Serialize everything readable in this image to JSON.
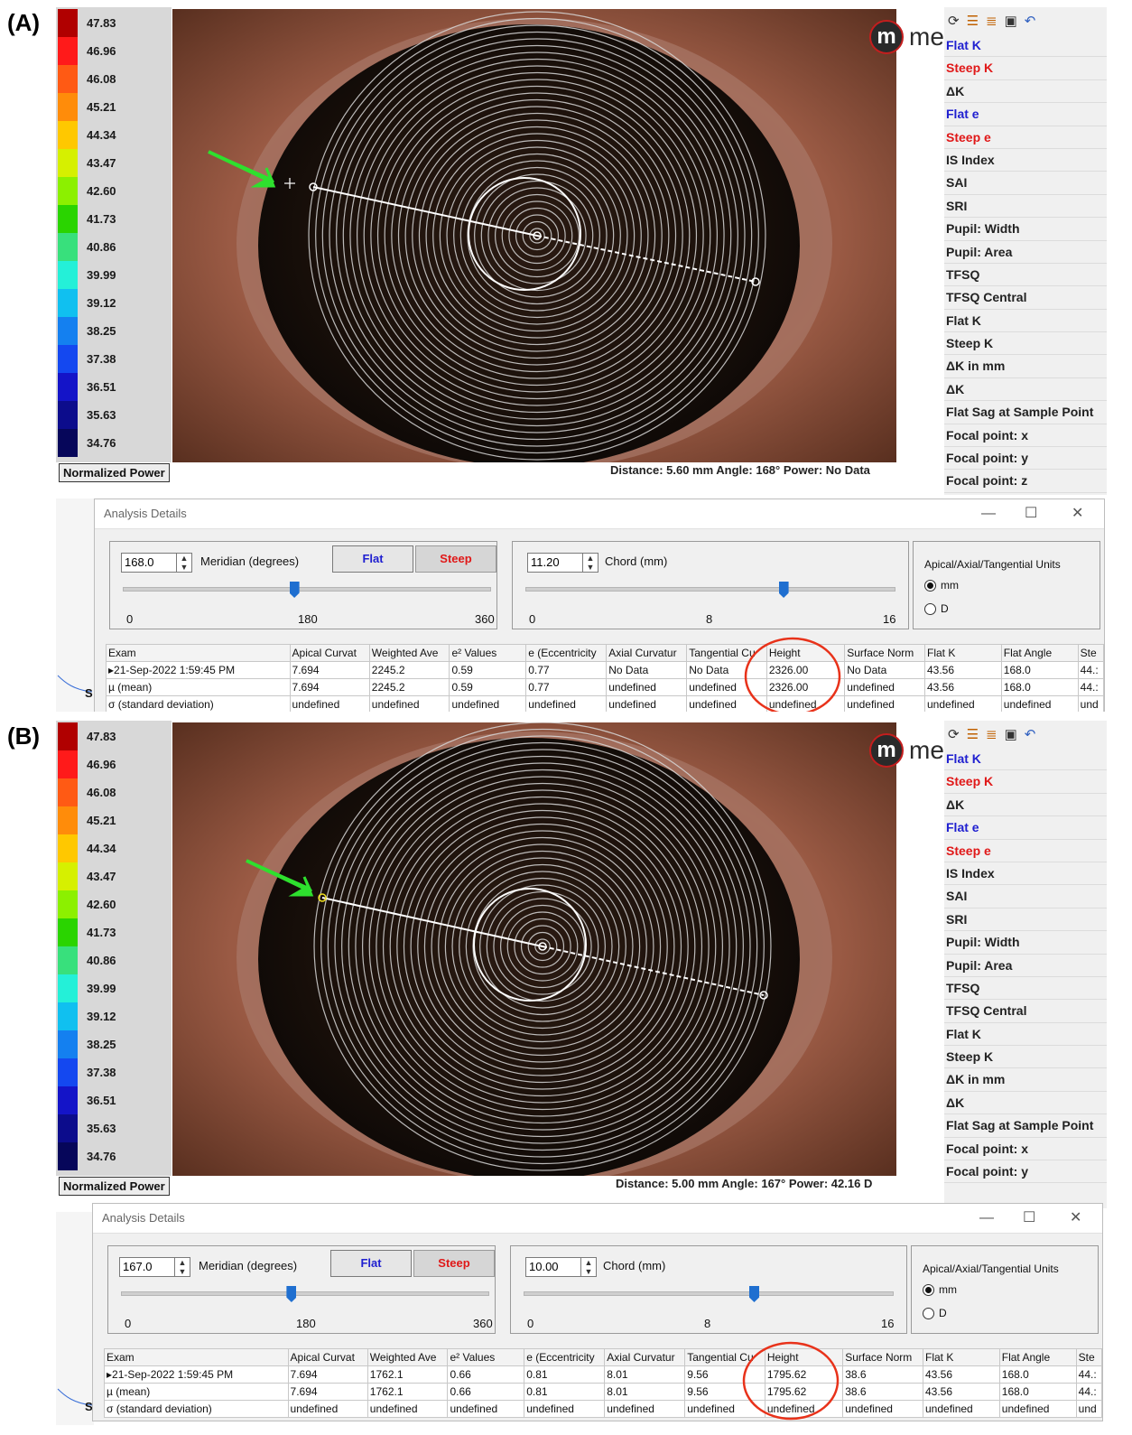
{
  "scale_values": [
    "47.83",
    "46.96",
    "46.08",
    "45.21",
    "44.34",
    "43.47",
    "42.60",
    "41.73",
    "40.86",
    "39.99",
    "39.12",
    "38.25",
    "37.38",
    "36.51",
    "35.63",
    "34.76"
  ],
  "scale_colors": [
    "#b00000",
    "#ff1a1a",
    "#ff5a14",
    "#ff8c0a",
    "#ffc800",
    "#d6f000",
    "#8cf000",
    "#2ad400",
    "#38e07c",
    "#24f0d8",
    "#10c0f0",
    "#1480f0",
    "#1448f0",
    "#1414c8",
    "#0c0c8c",
    "#06065a"
  ],
  "panels": [
    {
      "letter": "(A)",
      "scale_label": "Normalized Power",
      "logo": "medmont",
      "logo_mark": "m",
      "status": "Distance: 5.60 mm   Angle: 168°   Power:  No Data",
      "sidebar": [
        "Flat K",
        "Steep K",
        "ΔK",
        "Flat e",
        "Steep e",
        "IS Index",
        "SAI",
        "SRI",
        "Pupil: Width",
        "Pupil: Area",
        "TFSQ",
        "TFSQ Central",
        "Flat K",
        "Steep K",
        "ΔK in mm",
        "ΔK",
        "Flat Sag at Sample Point",
        "Focal point: x",
        "Focal point: y",
        "Focal point: z"
      ],
      "dialog": {
        "title": "Analysis Details",
        "meridian_value": "168.0",
        "meridian_label": "Meridian (degrees)",
        "meridian_ticks": [
          "0",
          "180",
          "360"
        ],
        "meridian_level": 0.467,
        "flat_btn": "Flat",
        "steep_btn": "Steep",
        "chord_value": "11.20",
        "chord_label": "Chord (mm)",
        "chord_ticks": [
          "0",
          "8",
          "16"
        ],
        "chord_level": 0.7,
        "units_title": "Apical/Axial/Tangential Units",
        "unit_mm": "mm",
        "unit_d": "D",
        "columns": [
          "Exam",
          "Apical Curvat",
          "Weighted Ave",
          "e² Values",
          "e (Eccentricity",
          "Axial Curvatur",
          "Tangential Cu",
          "Height",
          "Surface Norm",
          "Flat K",
          "Flat Angle",
          "Ste"
        ],
        "rows": [
          [
            "▸21-Sep-2022 1:59:45 PM",
            "7.694",
            "2245.2",
            "0.59",
            "0.77",
            "No Data",
            "No Data",
            "2326.00",
            "No Data",
            "43.56",
            "168.0",
            "44.:"
          ],
          [
            "µ (mean)",
            "7.694",
            "2245.2",
            "0.59",
            "0.77",
            "undefined",
            "undefined",
            "2326.00",
            "undefined",
            "43.56",
            "168.0",
            "44.:"
          ],
          [
            "σ (standard deviation)",
            "undefined",
            "undefined",
            "undefined",
            "undefined",
            "undefined",
            "undefined",
            "undefined",
            "undefined",
            "undefined",
            "undefined",
            "und"
          ]
        ]
      },
      "graph_stub": "S"
    },
    {
      "letter": "(B)",
      "scale_label": "Normalized Power",
      "logo": "medmont",
      "logo_mark": "m",
      "status": "Distance: 5.00 mm   Angle: 167°   Power:  42.16 D",
      "sidebar": [
        "Flat K",
        "Steep K",
        "ΔK",
        "Flat e",
        "Steep e",
        "IS Index",
        "SAI",
        "SRI",
        "Pupil: Width",
        "Pupil: Area",
        "TFSQ",
        "TFSQ Central",
        "Flat K",
        "Steep K",
        "ΔK in mm",
        "ΔK",
        "Flat Sag at Sample Point",
        "Focal point: x",
        "Focal point: y"
      ],
      "dialog": {
        "title": "Analysis Details",
        "meridian_value": "167.0",
        "meridian_label": "Meridian (degrees)",
        "meridian_ticks": [
          "0",
          "180",
          "360"
        ],
        "meridian_level": 0.464,
        "flat_btn": "Flat",
        "steep_btn": "Steep",
        "chord_value": "10.00",
        "chord_label": "Chord (mm)",
        "chord_ticks": [
          "0",
          "8",
          "16"
        ],
        "chord_level": 0.625,
        "units_title": "Apical/Axial/Tangential Units",
        "unit_mm": "mm",
        "unit_d": "D",
        "columns": [
          "Exam",
          "Apical Curvat",
          "Weighted Ave",
          "e² Values",
          "e (Eccentricity",
          "Axial Curvatur",
          "Tangential Cu",
          "Height",
          "Surface Norm",
          "Flat K",
          "Flat Angle",
          "Ste"
        ],
        "rows": [
          [
            "▸21-Sep-2022 1:59:45 PM",
            "7.694",
            "1762.1",
            "0.66",
            "0.81",
            "8.01",
            "9.56",
            "1795.62",
            "38.6",
            "43.56",
            "168.0",
            "44.:"
          ],
          [
            "µ (mean)",
            "7.694",
            "1762.1",
            "0.66",
            "0.81",
            "8.01",
            "9.56",
            "1795.62",
            "38.6",
            "43.56",
            "168.0",
            "44.:"
          ],
          [
            "σ (standard deviation)",
            "undefined",
            "undefined",
            "undefined",
            "undefined",
            "undefined",
            "undefined",
            "undefined",
            "undefined",
            "undefined",
            "undefined",
            "und"
          ]
        ]
      },
      "graph_stub": "S"
    }
  ]
}
